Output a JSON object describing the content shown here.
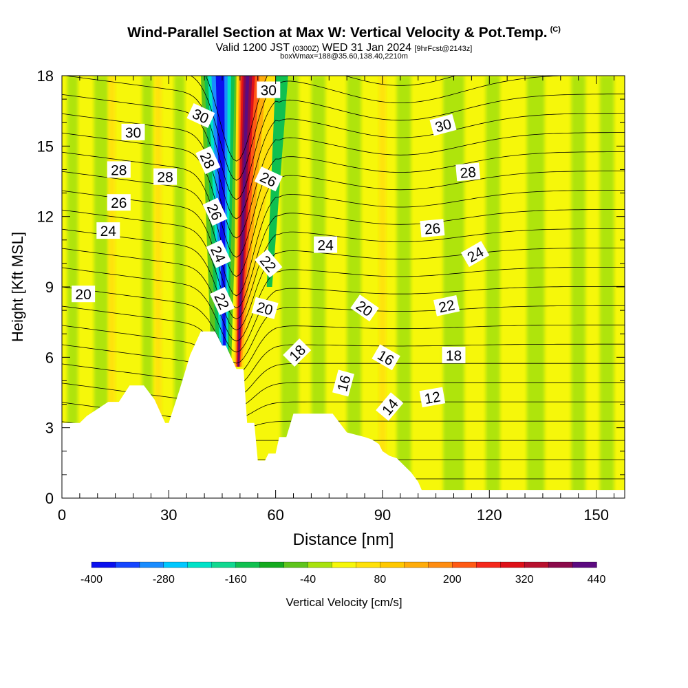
{
  "title": {
    "main": "Wind-Parallel Section at Max W: Vertical Velocity & Pot.Temp.",
    "copyright": "(C)",
    "valid_prefix": "Valid 1200 JST",
    "valid_utc": "(0300Z)",
    "valid_date": "WED 31 Jan 2024",
    "forecast": "[9hrFcst@2143z]",
    "box_line": "boxWmax=188@35.60,138.40,2210m"
  },
  "chart_data": {
    "type": "heatmap",
    "xlabel": "Distance [nm]",
    "ylabel": "Height [Kft MSL]",
    "xlim": [
      0,
      158
    ],
    "ylim": [
      0,
      18
    ],
    "x_ticks": [
      0,
      30,
      60,
      90,
      120,
      150
    ],
    "y_ticks": [
      0,
      3,
      6,
      9,
      12,
      15,
      18
    ],
    "colorbar": {
      "label": "Vertical Velocity [cm/s]",
      "tick_labels": [
        "-400",
        "-280",
        "-160",
        "-40",
        "80",
        "200",
        "320",
        "440"
      ],
      "tick_values": [
        -400,
        -280,
        -160,
        -40,
        80,
        200,
        320,
        440
      ],
      "bins": [
        -400,
        -360,
        -320,
        -280,
        -240,
        -200,
        -160,
        -120,
        -80,
        -40,
        0,
        40,
        80,
        120,
        160,
        200,
        240,
        280,
        320,
        360,
        400,
        440
      ],
      "colors": [
        "#0a10ee",
        "#1546ff",
        "#1a8cff",
        "#00c8ff",
        "#00e2c8",
        "#11d890",
        "#10c050",
        "#14aa1e",
        "#5ec41c",
        "#a8e20e",
        "#f6f70a",
        "#ffe10a",
        "#ffc800",
        "#ffac0a",
        "#ff8c10",
        "#ff5a14",
        "#f5281c",
        "#de1018",
        "#b8102e",
        "#8a0a4a",
        "#5c0a80"
      ]
    },
    "terrain_profile": {
      "x": [
        0,
        5,
        7,
        10,
        13,
        16,
        19,
        20,
        23,
        26,
        29,
        30,
        33,
        36,
        39,
        40,
        43,
        45,
        46,
        49,
        51,
        52,
        54,
        55,
        57,
        58,
        60,
        61,
        63,
        65,
        66,
        70,
        76,
        80,
        85,
        87,
        89,
        90,
        92,
        94,
        96,
        98,
        100,
        101,
        104,
        110,
        120,
        130,
        140,
        150,
        158
      ],
      "y": [
        3.2,
        3.2,
        3.5,
        3.8,
        4.1,
        4.1,
        4.8,
        4.8,
        4.8,
        4.2,
        3.2,
        3.2,
        4.6,
        6.1,
        7.1,
        7.1,
        7.1,
        6.5,
        6.5,
        5.5,
        5.5,
        3.2,
        3.2,
        1.6,
        1.6,
        1.9,
        1.9,
        2.6,
        2.6,
        3.6,
        3.6,
        3.6,
        3.6,
        2.8,
        2.6,
        2.5,
        2.3,
        2.0,
        1.8,
        1.7,
        1.4,
        1.1,
        0.7,
        0.35,
        0.35,
        0.35,
        0.35,
        0.35,
        0.35,
        0.35,
        0.35
      ]
    },
    "theta_contour_labels": [
      {
        "text": "30",
        "x": 20,
        "y": 15.6,
        "angle": 0
      },
      {
        "text": "28",
        "x": 16,
        "y": 14.0,
        "angle": 0
      },
      {
        "text": "28",
        "x": 29,
        "y": 13.7,
        "angle": 0
      },
      {
        "text": "26",
        "x": 16,
        "y": 12.6,
        "angle": 0
      },
      {
        "text": "24",
        "x": 13,
        "y": 11.4,
        "angle": 0
      },
      {
        "text": "20",
        "x": 6,
        "y": 8.7,
        "angle": 0
      },
      {
        "text": "30",
        "x": 39,
        "y": 16.3,
        "angle": 25
      },
      {
        "text": "28",
        "x": 41,
        "y": 14.4,
        "angle": 65
      },
      {
        "text": "26",
        "x": 43,
        "y": 12.2,
        "angle": 65
      },
      {
        "text": "24",
        "x": 44,
        "y": 10.4,
        "angle": 65
      },
      {
        "text": "22",
        "x": 45,
        "y": 8.4,
        "angle": 65
      },
      {
        "text": "30",
        "x": 58,
        "y": 17.4,
        "angle": 0
      },
      {
        "text": "26",
        "x": 58,
        "y": 13.6,
        "angle": 25
      },
      {
        "text": "22",
        "x": 58,
        "y": 10.0,
        "angle": 50
      },
      {
        "text": "20",
        "x": 57,
        "y": 8.1,
        "angle": 15
      },
      {
        "text": "24",
        "x": 74,
        "y": 10.8,
        "angle": 0
      },
      {
        "text": "18",
        "x": 66,
        "y": 6.2,
        "angle": -45
      },
      {
        "text": "20",
        "x": 85,
        "y": 8.1,
        "angle": 35
      },
      {
        "text": "16",
        "x": 79,
        "y": 4.9,
        "angle": -75
      },
      {
        "text": "16",
        "x": 91,
        "y": 6.0,
        "angle": 30
      },
      {
        "text": "14",
        "x": 92,
        "y": 3.9,
        "angle": -50
      },
      {
        "text": "12",
        "x": 104,
        "y": 4.3,
        "angle": -10
      },
      {
        "text": "18",
        "x": 110,
        "y": 6.1,
        "angle": 0
      },
      {
        "text": "22",
        "x": 108,
        "y": 8.2,
        "angle": -12
      },
      {
        "text": "26",
        "x": 104,
        "y": 11.5,
        "angle": -5
      },
      {
        "text": "24",
        "x": 116,
        "y": 10.4,
        "angle": -30
      },
      {
        "text": "28",
        "x": 114,
        "y": 13.9,
        "angle": -5
      },
      {
        "text": "30",
        "x": 107,
        "y": 15.9,
        "angle": -15
      }
    ],
    "vertical_velocity_features": [
      {
        "feature": "downdraft",
        "x": 45,
        "w_cms": -360
      },
      {
        "feature": "updraft",
        "x": 52,
        "w_cms": 440
      }
    ]
  }
}
